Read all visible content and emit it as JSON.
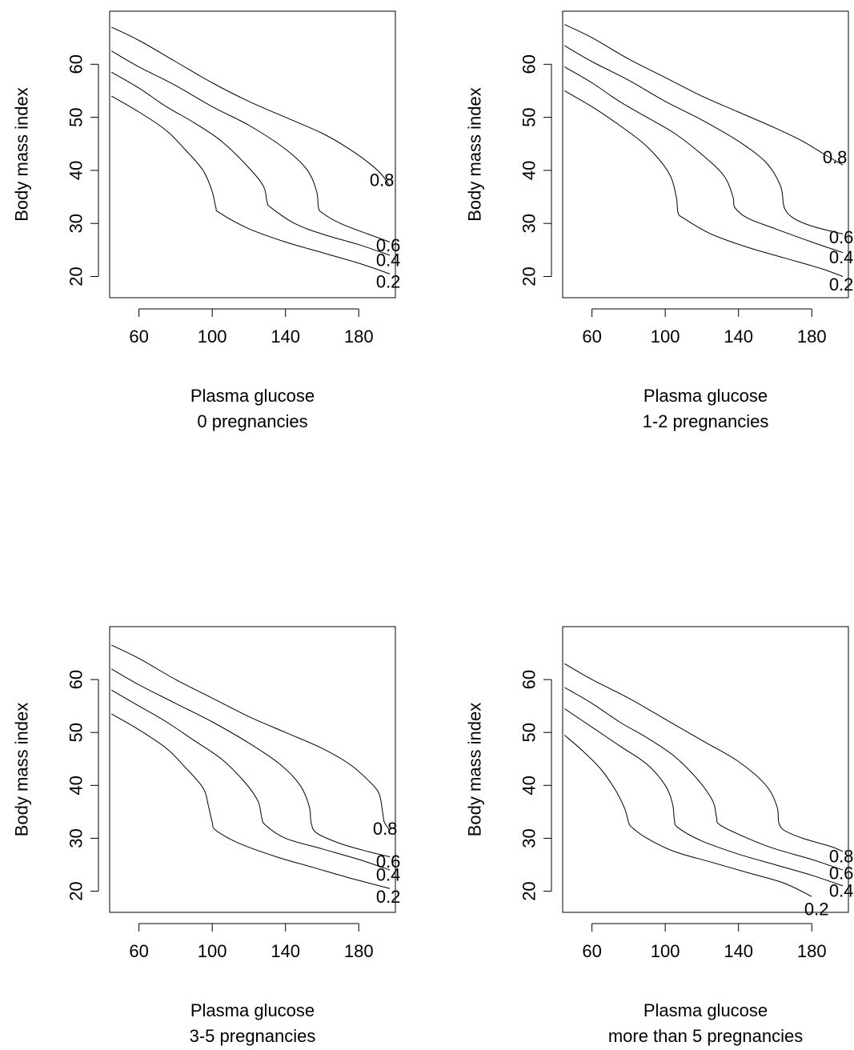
{
  "chart_data": [
    {
      "type": "line",
      "xlabel": "Plasma glucose",
      "subtitle": "0 pregnancies",
      "ylabel": "Body mass index",
      "xlim": [
        44,
        200
      ],
      "ylim": [
        16,
        70
      ],
      "xticks": [
        "60",
        "100",
        "140",
        "180"
      ],
      "yticks": [
        "20",
        "30",
        "40",
        "50",
        "60"
      ],
      "series": [
        {
          "name": "0.2",
          "points": [
            [
              45,
              54
            ],
            [
              60,
              51
            ],
            [
              75,
              47.5
            ],
            [
              85,
              44
            ],
            [
              95,
              40
            ],
            [
              100,
              36
            ],
            [
              102,
              33
            ],
            [
              104,
              32
            ],
            [
              120,
              29
            ],
            [
              140,
              26.5
            ],
            [
              160,
              24.5
            ],
            [
              180,
              22.5
            ],
            [
              197,
              20.5
            ]
          ]
        },
        {
          "name": "0.4",
          "points": [
            [
              45,
              58.5
            ],
            [
              60,
              55.5
            ],
            [
              75,
              52
            ],
            [
              90,
              49
            ],
            [
              105,
              45.5
            ],
            [
              120,
              40.5
            ],
            [
              128,
              37
            ],
            [
              130,
              34
            ],
            [
              132,
              33
            ],
            [
              145,
              30
            ],
            [
              160,
              28
            ],
            [
              180,
              26
            ],
            [
              197,
              24
            ]
          ]
        },
        {
          "name": "0.6",
          "points": [
            [
              45,
              62.5
            ],
            [
              60,
              59.5
            ],
            [
              80,
              56
            ],
            [
              100,
              52
            ],
            [
              120,
              48.5
            ],
            [
              140,
              44
            ],
            [
              152,
              40
            ],
            [
              157,
              36
            ],
            [
              158,
              33
            ],
            [
              160,
              32
            ],
            [
              170,
              30
            ],
            [
              185,
              28
            ],
            [
              197,
              26.5
            ]
          ]
        },
        {
          "name": "0.8",
          "points": [
            [
              45,
              67
            ],
            [
              60,
              64.5
            ],
            [
              80,
              60.5
            ],
            [
              100,
              56.5
            ],
            [
              120,
              53
            ],
            [
              140,
              50
            ],
            [
              160,
              47
            ],
            [
              175,
              44
            ],
            [
              187,
              41
            ],
            [
              193,
              39
            ],
            [
              197,
              37
            ]
          ]
        }
      ]
    },
    {
      "type": "line",
      "xlabel": "Plasma glucose",
      "subtitle": "1-2 pregnancies",
      "ylabel": "Body mass index",
      "xlim": [
        44,
        200
      ],
      "ylim": [
        16,
        70
      ],
      "xticks": [
        "60",
        "100",
        "140",
        "180"
      ],
      "yticks": [
        "20",
        "30",
        "40",
        "50",
        "60"
      ],
      "series": [
        {
          "name": "0.2",
          "points": [
            [
              45,
              55
            ],
            [
              60,
              52
            ],
            [
              75,
              48.5
            ],
            [
              90,
              44.5
            ],
            [
              102,
              39.5
            ],
            [
              106,
              35
            ],
            [
              107,
              32
            ],
            [
              110,
              31
            ],
            [
              125,
              28
            ],
            [
              145,
              25.5
            ],
            [
              165,
              23.5
            ],
            [
              185,
              21.5
            ],
            [
              197,
              20
            ]
          ]
        },
        {
          "name": "0.4",
          "points": [
            [
              45,
              59.5
            ],
            [
              60,
              56.5
            ],
            [
              75,
              53
            ],
            [
              90,
              50
            ],
            [
              105,
              47
            ],
            [
              120,
              43
            ],
            [
              132,
              39
            ],
            [
              137,
              35
            ],
            [
              138,
              33
            ],
            [
              145,
              31
            ],
            [
              160,
              29
            ],
            [
              180,
              26.5
            ],
            [
              197,
              24.5
            ]
          ]
        },
        {
          "name": "0.6",
          "points": [
            [
              45,
              63.5
            ],
            [
              60,
              60.5
            ],
            [
              80,
              57
            ],
            [
              100,
              53
            ],
            [
              120,
              49.5
            ],
            [
              140,
              45.5
            ],
            [
              155,
              41.5
            ],
            [
              163,
              37
            ],
            [
              165,
              33
            ],
            [
              170,
              31
            ],
            [
              180,
              29.5
            ],
            [
              197,
              28
            ]
          ]
        },
        {
          "name": "0.8",
          "points": [
            [
              45,
              67.5
            ],
            [
              60,
              65
            ],
            [
              80,
              61
            ],
            [
              100,
              57.5
            ],
            [
              120,
              54
            ],
            [
              140,
              51
            ],
            [
              160,
              48
            ],
            [
              175,
              45.5
            ],
            [
              187,
              43
            ],
            [
              197,
              41
            ]
          ]
        }
      ]
    },
    {
      "type": "line",
      "xlabel": "Plasma glucose",
      "subtitle": "3-5 pregnancies",
      "ylabel": "Body mass index",
      "xlim": [
        44,
        200
      ],
      "ylim": [
        16,
        70
      ],
      "xticks": [
        "60",
        "100",
        "140",
        "180"
      ],
      "yticks": [
        "20",
        "30",
        "40",
        "50",
        "60"
      ],
      "series": [
        {
          "name": "0.2",
          "points": [
            [
              45,
              53.5
            ],
            [
              60,
              50.5
            ],
            [
              75,
              47
            ],
            [
              85,
              43.5
            ],
            [
              95,
              39.5
            ],
            [
              98,
              36
            ],
            [
              100,
              33
            ],
            [
              102,
              31.5
            ],
            [
              115,
              29
            ],
            [
              135,
              26.5
            ],
            [
              155,
              24.5
            ],
            [
              175,
              22.5
            ],
            [
              197,
              20.5
            ]
          ]
        },
        {
          "name": "0.4",
          "points": [
            [
              45,
              58
            ],
            [
              60,
              55
            ],
            [
              75,
              52
            ],
            [
              90,
              48.5
            ],
            [
              105,
              45
            ],
            [
              118,
              40.5
            ],
            [
              125,
              37
            ],
            [
              127,
              34
            ],
            [
              129,
              32.5
            ],
            [
              140,
              30
            ],
            [
              160,
              28
            ],
            [
              180,
              26
            ],
            [
              197,
              24
            ]
          ]
        },
        {
          "name": "0.6",
          "points": [
            [
              45,
              62
            ],
            [
              60,
              59
            ],
            [
              80,
              55.5
            ],
            [
              100,
              52
            ],
            [
              120,
              48
            ],
            [
              137,
              44
            ],
            [
              148,
              40
            ],
            [
              153,
              36
            ],
            [
              154,
              33
            ],
            [
              157,
              31
            ],
            [
              170,
              29
            ],
            [
              185,
              27.5
            ],
            [
              197,
              26.5
            ]
          ]
        },
        {
          "name": "0.8",
          "points": [
            [
              45,
              66.5
            ],
            [
              60,
              64
            ],
            [
              80,
              60
            ],
            [
              100,
              56.5
            ],
            [
              120,
              53
            ],
            [
              140,
              50
            ],
            [
              160,
              47
            ],
            [
              175,
              44
            ],
            [
              185,
              41
            ],
            [
              191,
              38.5
            ],
            [
              193,
              35
            ],
            [
              194,
              33
            ],
            [
              197,
              31.5
            ]
          ]
        }
      ]
    },
    {
      "type": "line",
      "xlabel": "Plasma glucose",
      "subtitle": "more than 5 pregnancies",
      "ylabel": "Body mass index",
      "xlim": [
        44,
        200
      ],
      "ylim": [
        16,
        70
      ],
      "xticks": [
        "60",
        "100",
        "140",
        "180"
      ],
      "yticks": [
        "20",
        "30",
        "40",
        "50",
        "60"
      ],
      "series": [
        {
          "name": "0.2",
          "points": [
            [
              45,
              49.5
            ],
            [
              55,
              46.5
            ],
            [
              65,
              43
            ],
            [
              73,
              39
            ],
            [
              78,
              35.5
            ],
            [
              80,
              33
            ],
            [
              82,
              32
            ],
            [
              90,
              30
            ],
            [
              105,
              27.5
            ],
            [
              125,
              25.5
            ],
            [
              145,
              23.5
            ],
            [
              165,
              21.5
            ],
            [
              180,
              19
            ]
          ]
        },
        {
          "name": "0.4",
          "points": [
            [
              45,
              54.5
            ],
            [
              60,
              51
            ],
            [
              75,
              47.5
            ],
            [
              90,
              44
            ],
            [
              100,
              40
            ],
            [
              104,
              36.5
            ],
            [
              105,
              33.5
            ],
            [
              107,
              32
            ],
            [
              120,
              29.5
            ],
            [
              140,
              27
            ],
            [
              160,
              25
            ],
            [
              180,
              23
            ],
            [
              197,
              21
            ]
          ]
        },
        {
          "name": "0.6",
          "points": [
            [
              45,
              58.5
            ],
            [
              60,
              55.5
            ],
            [
              75,
              52
            ],
            [
              90,
              49
            ],
            [
              105,
              45.5
            ],
            [
              118,
              41
            ],
            [
              126,
              37
            ],
            [
              128,
              34
            ],
            [
              130,
              32.5
            ],
            [
              145,
              30
            ],
            [
              160,
              28
            ],
            [
              180,
              26
            ],
            [
              197,
              24
            ]
          ]
        },
        {
          "name": "0.8",
          "points": [
            [
              45,
              63
            ],
            [
              60,
              60
            ],
            [
              80,
              56.5
            ],
            [
              100,
              52.5
            ],
            [
              120,
              48.5
            ],
            [
              140,
              44.5
            ],
            [
              155,
              40
            ],
            [
              161,
              36
            ],
            [
              162,
              33
            ],
            [
              165,
              31.5
            ],
            [
              175,
              30
            ],
            [
              190,
              28.5
            ],
            [
              197,
              27.5
            ]
          ]
        }
      ]
    }
  ]
}
